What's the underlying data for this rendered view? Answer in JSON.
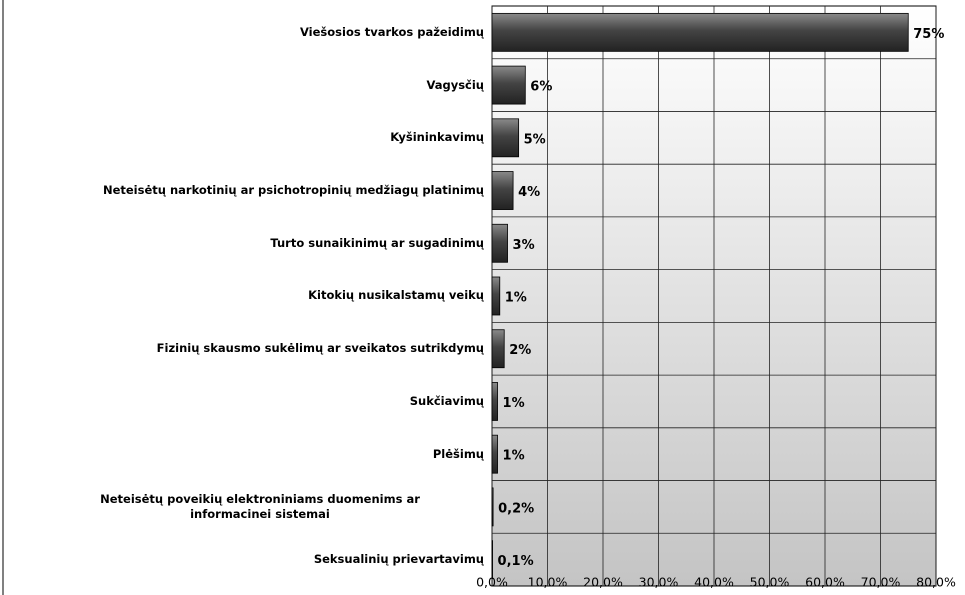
{
  "chart_data": {
    "type": "barh",
    "categories": [
      "Viešosios tvarkos pažeidimų",
      "Vagysčių",
      "Kyšininkavimų",
      "Neteisėtų narkotinių ar psichotropinių medžiagų platinimų",
      "Turto sunaikinimų ar sugadinimų",
      "Kitokių nusikalstamų veikų",
      "Fizinių skausmo sukėlimų ar sveikatos sutrikdymų",
      "Sukčiavimų",
      "Plėšimų",
      "Neteisėtų poveikių elektroniniams duomenims ar informacinei sistemai",
      "Seksualinių prievartavimų"
    ],
    "values": [
      75,
      6,
      4.8,
      3.8,
      2.8,
      1.4,
      2.2,
      1,
      1,
      0.2,
      0.1
    ],
    "value_labels": [
      "75%",
      "6%",
      "5%",
      "4%",
      "3%",
      "1%",
      "2%",
      "1%",
      "1%",
      "0,2%",
      "0,1%"
    ],
    "color": "#555555",
    "xlim": [
      0,
      80
    ],
    "xticks": [
      {
        "value": 0,
        "label": "0,0%"
      },
      {
        "value": 10,
        "label": "10,0%"
      },
      {
        "value": 20,
        "label": "20,0%"
      },
      {
        "value": 30,
        "label": "30,0%"
      },
      {
        "value": 40,
        "label": "40,0%"
      },
      {
        "value": 50,
        "label": "50,0%"
      },
      {
        "value": 60,
        "label": "60,0%"
      },
      {
        "value": 70,
        "label": "70,0%"
      },
      {
        "value": 80,
        "label": "80,0%"
      }
    ],
    "grid": true
  }
}
